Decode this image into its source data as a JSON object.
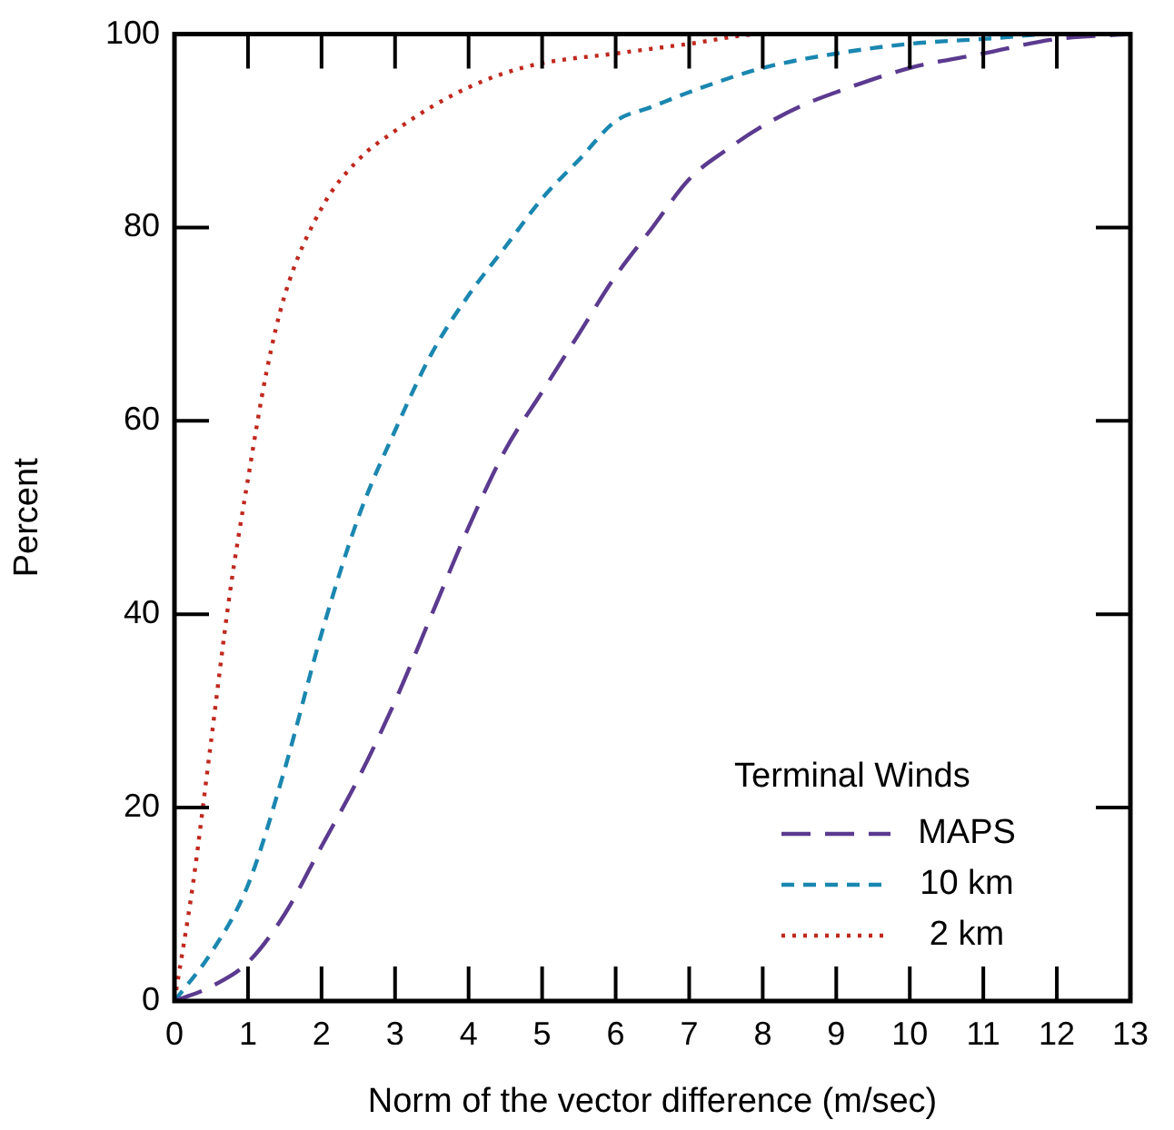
{
  "chart_data": {
    "type": "line",
    "xlabel": "Norm of the vector difference (m/sec)",
    "ylabel": "Percent",
    "legend_title": "Terminal Winds",
    "legend": "bottom right",
    "marker": "none",
    "xlim": [
      0,
      13
    ],
    "xticks": [
      0,
      1,
      2,
      3,
      4,
      5,
      6,
      7,
      8,
      9,
      10,
      11,
      12,
      13
    ],
    "ylim": [
      0,
      100
    ],
    "yticks": [
      0,
      20,
      40,
      60,
      80,
      100
    ],
    "series": [
      {
        "name": "MAPS",
        "color": "#5b3a8f",
        "line_style": "dashed",
        "x": [
          0,
          0.5,
          1,
          1.5,
          2,
          2.5,
          3,
          3.5,
          4,
          4.5,
          5,
          5.5,
          6,
          6.5,
          7,
          7.5,
          8,
          8.5,
          9,
          10,
          11,
          12,
          13
        ],
        "values": [
          0,
          1.5,
          4,
          9,
          16,
          23,
          31,
          40,
          49,
          57,
          63,
          69,
          75,
          80,
          85,
          88,
          90.5,
          92.5,
          94,
          96.5,
          98,
          99.5,
          100
        ]
      },
      {
        "name": "10 km",
        "color": "#1a87b0",
        "line_style": "dashed",
        "x": [
          0,
          0.5,
          1,
          1.5,
          2,
          2.5,
          3,
          3.5,
          4,
          4.5,
          5,
          5.5,
          6,
          6.5,
          7,
          8,
          9,
          10,
          11,
          12,
          13
        ],
        "values": [
          0,
          5,
          12,
          24,
          38,
          50,
          59,
          67,
          73,
          78,
          83,
          87,
          91,
          92.5,
          94,
          96.5,
          98,
          99,
          99.5,
          100,
          100
        ]
      },
      {
        "name": "2 km",
        "color": "#c0281e",
        "line_style": "dotted",
        "x": [
          0,
          0.25,
          0.5,
          0.75,
          1,
          1.25,
          1.5,
          2,
          2.5,
          3,
          3.5,
          4,
          4.5,
          5,
          6,
          7,
          8,
          13
        ],
        "values": [
          0,
          12,
          27,
          42,
          54,
          65,
          73,
          82,
          87,
          90,
          92.5,
          94.5,
          96,
          97,
          98,
          99,
          100,
          100
        ]
      }
    ]
  }
}
